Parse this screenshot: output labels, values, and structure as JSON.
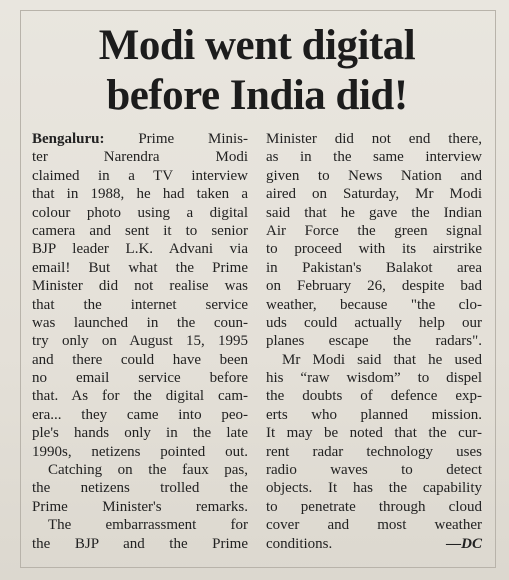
{
  "headline": [
    "Modi went digital",
    "before India did!"
  ],
  "dateline": "Bengaluru:",
  "columns": [
    {
      "paragraphs": [
        [
          "Prime Minis-",
          "ter Narendra Modi",
          "claimed in a TV interview",
          "that in 1988, he had taken a",
          "colour photo using a digital",
          "camera and sent it to senior",
          "BJP leader L.K. Advani via",
          "email! But what the Prime",
          "Minister did not realise was",
          "that the internet service",
          "was launched in the coun-",
          "try only on August 15, 1995",
          "and there could have been",
          "no email service before",
          "that. As for the digital cam-",
          "era... they came into peo-",
          "ple's hands only in the late",
          "1990s, netizens pointed out."
        ],
        [
          "Catching on the faux pas,",
          "the netizens trolled the",
          "Prime Minister's remarks."
        ],
        [
          "The embarrassment for",
          "the BJP and the Prime"
        ]
      ]
    },
    {
      "paragraphs": [
        [
          "Minister did not end there,",
          "as in the same interview",
          "given to News Nation and",
          "aired on Saturday, Mr Modi",
          "said that he gave the Indian",
          "Air Force the green signal",
          "to proceed with its airstrike",
          "in Pakistan's Balakot area",
          "on February 26, despite bad",
          "weather, because \"the clo-",
          "uds could actually help our",
          "planes escape the radars\"."
        ],
        [
          "Mr Modi said that he used",
          "his “raw wisdom” to dispel",
          "the doubts of defence exp-",
          "erts who planned mission.",
          "It may be noted that the cur-",
          "rent radar technology uses",
          "radio waves to detect",
          "objects. It has the capability",
          "to penetrate through cloud",
          "cover and most weather",
          "conditions."
        ]
      ]
    }
  ],
  "signature": "—DC"
}
